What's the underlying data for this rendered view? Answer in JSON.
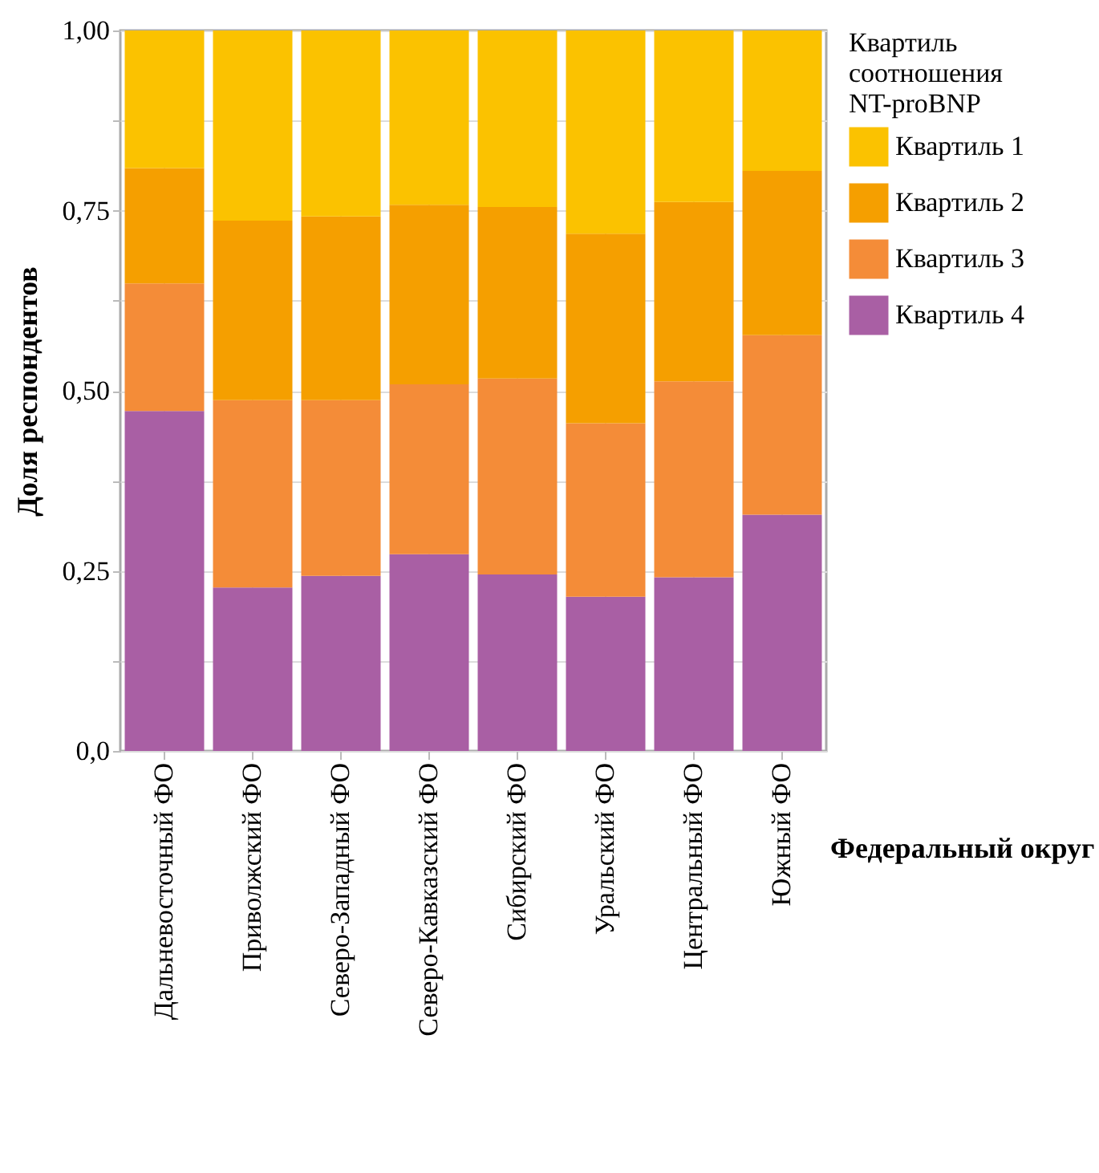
{
  "chart_data": {
    "type": "bar",
    "stacked": true,
    "xlabel": "Федеральный округ",
    "ylabel": "Доля респондентов",
    "legend_title": "Квартиль соотношения NT-proBNP",
    "legend": "right",
    "grid": true,
    "categories": [
      "Дальневосточный ФО",
      "Приволжский ФО",
      "Северо-Западный ФО",
      "Северо-Кавказский ФО",
      "Сибирский ФО",
      "Уральский ФО",
      "Центральный ФО",
      "Южный ФО"
    ],
    "ylim": [
      0,
      1
    ],
    "yticks": [
      {
        "value": 0,
        "label": "0,0"
      },
      {
        "value": 0.125,
        "label": null
      },
      {
        "value": 0.25,
        "label": "0,25"
      },
      {
        "value": 0.375,
        "label": null
      },
      {
        "value": 0.5,
        "label": "0,50"
      },
      {
        "value": 0.625,
        "label": null
      },
      {
        "value": 0.75,
        "label": "0,75"
      },
      {
        "value": 0.875,
        "label": null
      },
      {
        "value": 1,
        "label": "1,00"
      }
    ],
    "series": [
      {
        "name": "Квартиль 4",
        "color": "#a95fa4",
        "values": [
          0.472,
          0.227,
          0.243,
          0.273,
          0.245,
          0.214,
          0.241,
          0.328
        ]
      },
      {
        "name": "Квартиль 3",
        "color": "#f48c38",
        "values": [
          0.177,
          0.26,
          0.244,
          0.236,
          0.272,
          0.241,
          0.272,
          0.249
        ]
      },
      {
        "name": "Квартиль 2",
        "color": "#f59f00",
        "values": [
          0.16,
          0.249,
          0.255,
          0.249,
          0.238,
          0.263,
          0.249,
          0.228
        ]
      },
      {
        "name": "Квартиль 1",
        "color": "#fbc200",
        "values": [
          0.191,
          0.264,
          0.258,
          0.242,
          0.245,
          0.282,
          0.238,
          0.195
        ]
      }
    ]
  }
}
